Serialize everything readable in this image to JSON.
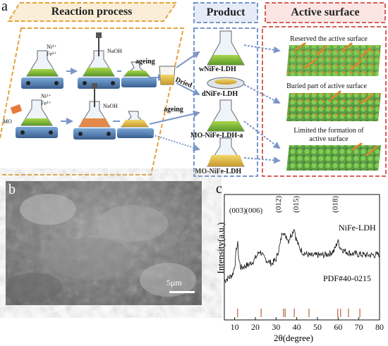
{
  "panel_a": {
    "letter": "a",
    "headers": {
      "reaction": "Reaction process",
      "product": "Product",
      "active": "Active surface"
    },
    "reagents_top": {
      "ni": "Ni²⁺",
      "fe": "Fe³⁺",
      "naoh": "NaOH"
    },
    "reagents_bottom": {
      "mo": "MO",
      "ni": "Ni²⁺",
      "fe": "Fe³⁺",
      "naoh": "NaOH"
    },
    "step_ageing_top": "ageing",
    "step_ageing_bottom": "ageing",
    "step_dried": "Dried",
    "products": [
      "wNiFe-LDH",
      "dNiFe-LDH",
      "MO-NiFe-LDH-a",
      "MO-NiFe-LDH"
    ],
    "active_labels": [
      "Reserved the active surface",
      "Buried part of  active surface",
      "Limited the formation of",
      "active surface"
    ],
    "colors": {
      "reaction_border": "#e3a33c",
      "product_border": "#7b96c8",
      "active_border": "#d9605a"
    }
  },
  "panel_b": {
    "letter": "b",
    "scale_bar": "5μm"
  },
  "panel_c": {
    "letter": "c",
    "ylabel": "Intensity(a.u.)",
    "xlabel": "2θ(degree)",
    "series_label": "NiFe-LDH",
    "pdf_label": "PDF#40-0215",
    "x_ticks": [
      "10",
      "20",
      "30",
      "40",
      "50",
      "60",
      "70",
      "80"
    ],
    "peaks": [
      {
        "label": "(003)",
        "x": 11.4
      },
      {
        "label": "(006)",
        "x": 22.8
      },
      {
        "label": "(012)",
        "x": 33.6
      },
      {
        "label": "(015)",
        "x": 38.8
      },
      {
        "label": "(018)",
        "x": 59.8
      }
    ]
  },
  "chart_data": {
    "type": "line",
    "xlabel": "2θ(degree)",
    "ylabel": "Intensity(a.u.)",
    "xlim": [
      5,
      80
    ],
    "x": [
      5,
      7,
      9,
      10,
      11,
      11.5,
      12,
      13,
      15,
      17,
      19,
      21,
      22,
      23,
      24,
      26,
      28,
      30,
      32,
      33,
      33.6,
      34.5,
      35,
      36,
      37,
      38,
      38.8,
      39.5,
      41,
      43,
      45,
      47,
      50,
      53,
      56,
      58,
      59,
      59.8,
      61,
      63,
      66,
      70,
      74,
      78,
      80
    ],
    "series": [
      {
        "name": "NiFe-LDH",
        "values": [
          0.15,
          0.18,
          0.22,
          0.32,
          0.55,
          0.58,
          0.4,
          0.3,
          0.32,
          0.34,
          0.38,
          0.45,
          0.5,
          0.47,
          0.42,
          0.38,
          0.35,
          0.4,
          0.58,
          0.72,
          0.74,
          0.66,
          0.68,
          0.62,
          0.68,
          0.72,
          0.78,
          0.66,
          0.55,
          0.48,
          0.46,
          0.44,
          0.45,
          0.45,
          0.47,
          0.5,
          0.56,
          0.62,
          0.54,
          0.5,
          0.47,
          0.46,
          0.45,
          0.45,
          0.46
        ]
      }
    ],
    "reference_ticks": [
      11.4,
      22.8,
      33.6,
      34.4,
      38.8,
      45.9,
      59.8,
      61.2,
      65,
      70.5
    ]
  }
}
